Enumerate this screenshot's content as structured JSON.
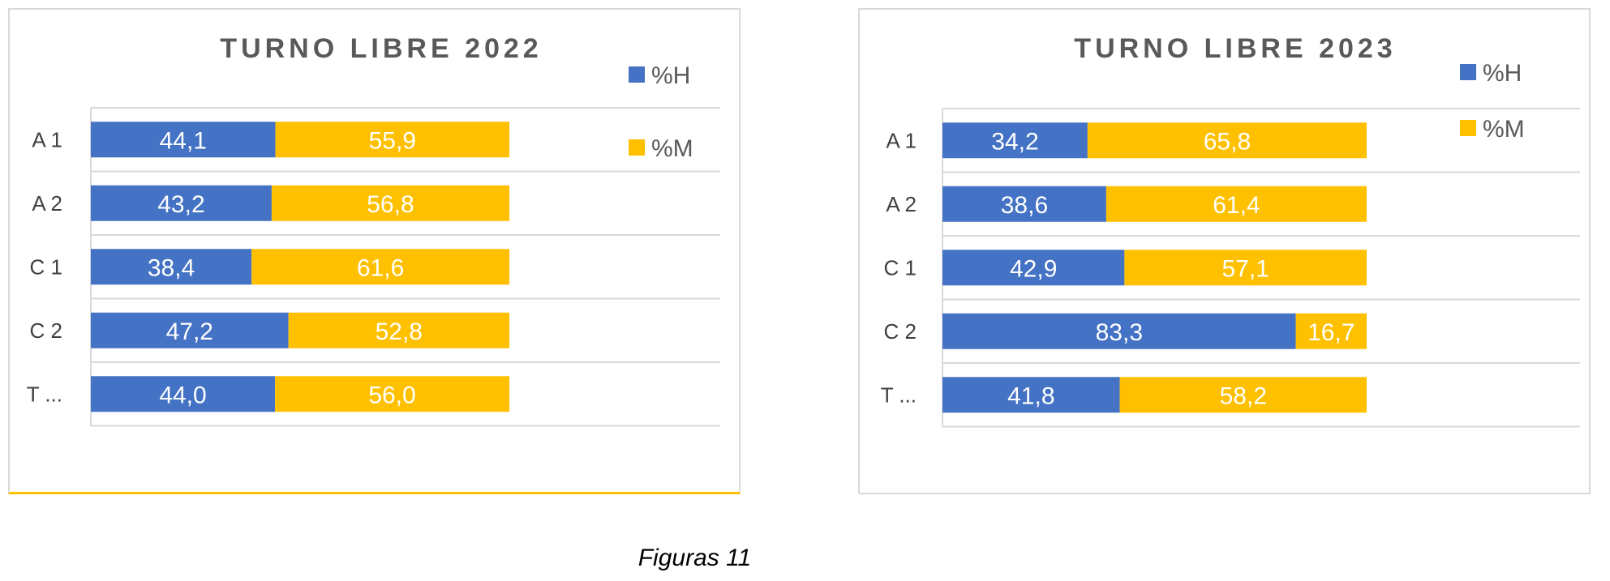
{
  "chart_data": [
    {
      "type": "bar",
      "orientation": "horizontal",
      "stacked": "percent",
      "title": "TURNO LIBRE 2022",
      "categories": [
        "A 1",
        "A 2",
        "C 1",
        "C 2",
        "T ..."
      ],
      "series": [
        {
          "name": "%H",
          "color": "#4472c4",
          "values": [
            44.1,
            43.2,
            38.4,
            47.2,
            44.0
          ],
          "labels": [
            "44,1",
            "43,2",
            "38,4",
            "47,2",
            "44,0"
          ]
        },
        {
          "name": "%M",
          "color": "#ffc000",
          "values": [
            55.9,
            56.8,
            61.6,
            52.8,
            56.0
          ],
          "labels": [
            "55,9",
            "56,8",
            "61,6",
            "52,8",
            "56,0"
          ]
        }
      ],
      "xlim": [
        0,
        100
      ],
      "grid": "horizontal",
      "legend": "top-right"
    },
    {
      "type": "bar",
      "orientation": "horizontal",
      "stacked": "percent",
      "title": "TURNO LIBRE 2023",
      "categories": [
        "A 1",
        "A 2",
        "C 1",
        "C 2",
        "T ..."
      ],
      "series": [
        {
          "name": "%H",
          "color": "#4472c4",
          "values": [
            34.2,
            38.6,
            42.9,
            83.3,
            41.8
          ],
          "labels": [
            "34,2",
            "38,6",
            "42,9",
            "83,3",
            "41,8"
          ]
        },
        {
          "name": "%M",
          "color": "#ffc000",
          "values": [
            65.8,
            61.4,
            57.1,
            16.7,
            58.2
          ],
          "labels": [
            "65,8",
            "61,4",
            "57,1",
            "16,7",
            "58,2"
          ]
        }
      ],
      "xlim": [
        0,
        100
      ],
      "grid": "horizontal",
      "legend": "top-right"
    }
  ],
  "caption": "Figuras 11"
}
